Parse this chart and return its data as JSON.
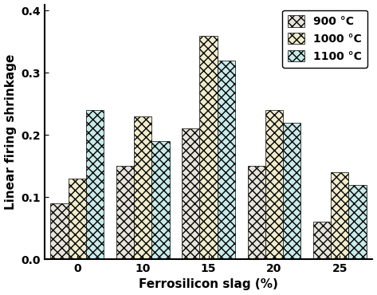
{
  "categories": [
    "0",
    "10",
    "15",
    "20",
    "25"
  ],
  "series": {
    "900 °C": [
      0.09,
      0.15,
      0.21,
      0.15,
      0.06
    ],
    "1000 °C": [
      0.13,
      0.23,
      0.36,
      0.24,
      0.14
    ],
    "1100 °C": [
      0.24,
      0.19,
      0.32,
      0.22,
      0.12
    ]
  },
  "colors": [
    "#d8d0c0",
    "#e8e4a0",
    "#a8d8d8"
  ],
  "face_colors": [
    "#e8e4dc",
    "#f0eccc",
    "#c8eaea"
  ],
  "xlabel": "Ferrosilicon slag (%)",
  "ylabel": "Linear firing shrinkage",
  "ylim": [
    0.0,
    0.41
  ],
  "yticks": [
    0.0,
    0.1,
    0.2,
    0.3,
    0.4
  ],
  "legend_labels": [
    "900 °C",
    "1000 °C",
    "1100 °C"
  ],
  "bar_width": 0.27,
  "edgecolor": "#000000",
  "axis_fontsize": 11,
  "tick_fontsize": 10,
  "legend_fontsize": 10
}
